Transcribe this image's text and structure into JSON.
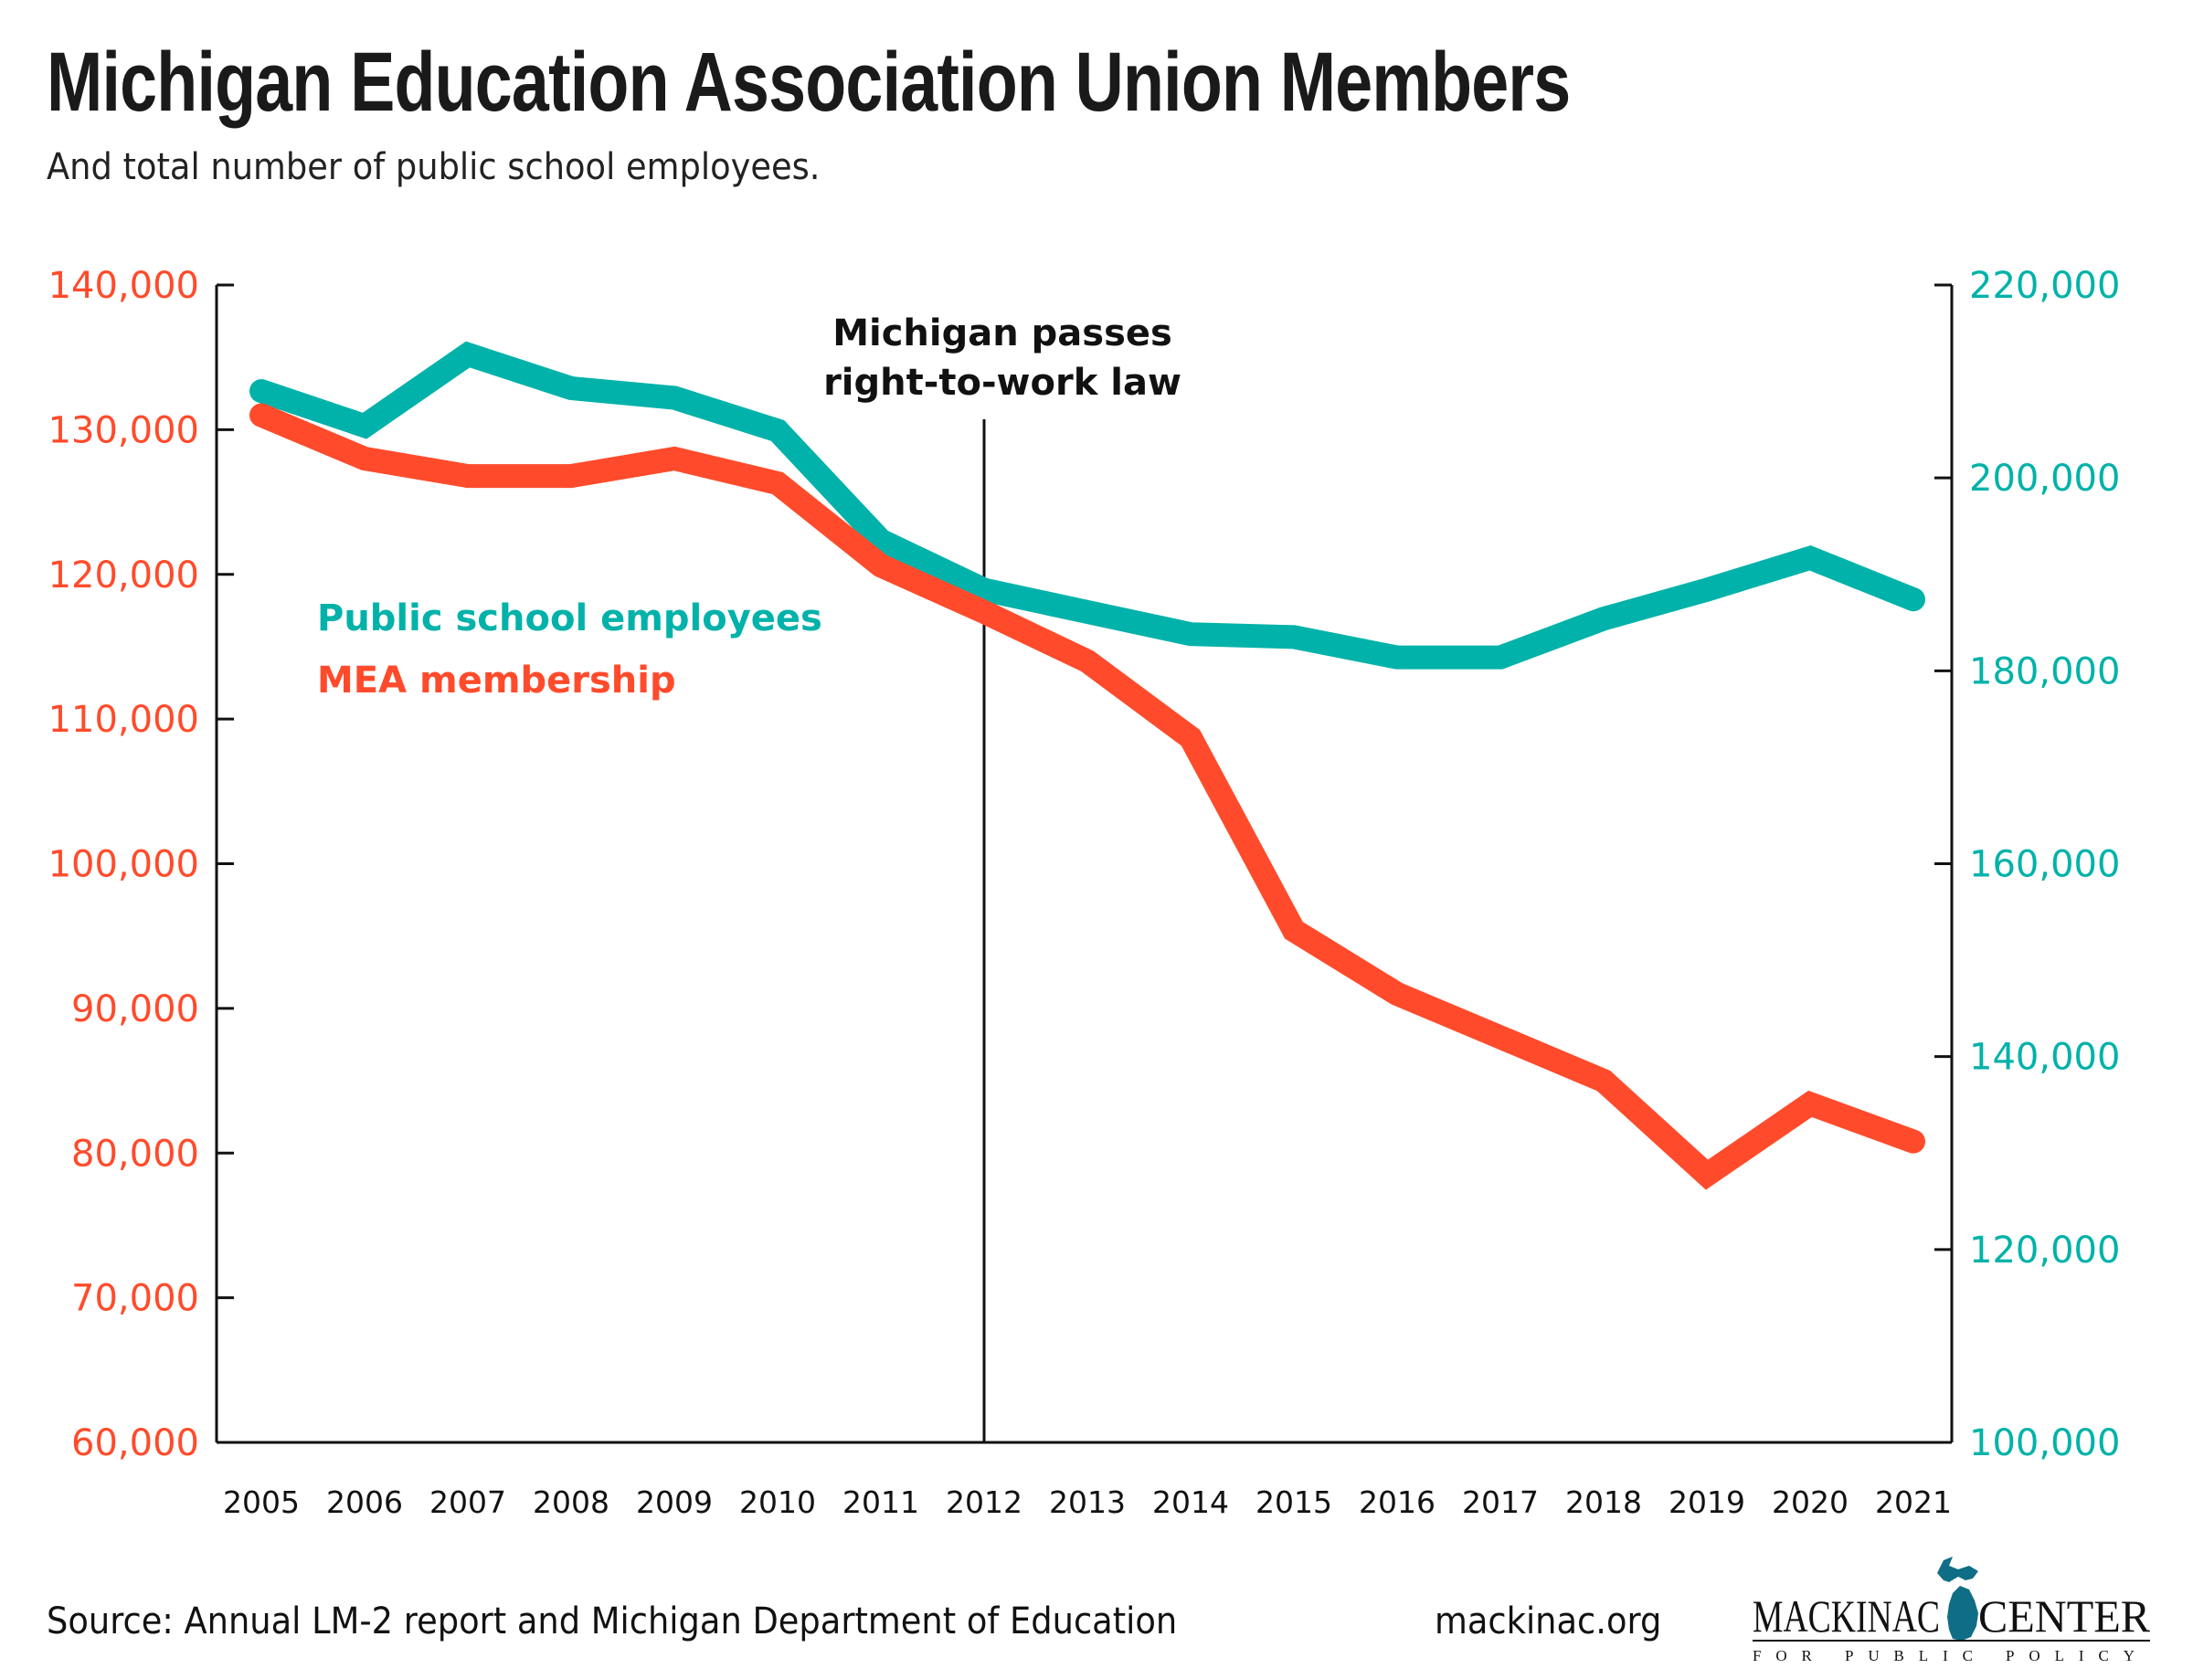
{
  "header": {
    "title": "Michigan Education Association Union Members",
    "subtitle": "And total number of public school employees."
  },
  "footer": {
    "source": "Source: Annual LM-2 report and Michigan Department of Education",
    "url": "mackinac.org",
    "logo": {
      "name_left": "MACKINAC",
      "name_right": "CENTER",
      "tagline": "FOR PUBLIC POLICY",
      "icon": "michigan-map-icon",
      "color": "#0f6e86"
    }
  },
  "colors": {
    "mea": "#ff4b2b",
    "employees": "#00b2a9",
    "axis": "#111111"
  },
  "chart_data": {
    "type": "line",
    "title": "Michigan Education Association Union Members",
    "subtitle": "And total number of public school employees.",
    "x": [
      2005,
      2006,
      2007,
      2008,
      2009,
      2010,
      2011,
      2012,
      2013,
      2014,
      2015,
      2016,
      2017,
      2018,
      2019,
      2020,
      2021
    ],
    "x_tick_labels": [
      "2005",
      "2006",
      "2007",
      "2008",
      "2009",
      "2010",
      "2011",
      "2012",
      "2013",
      "2014",
      "2015",
      "2016",
      "2017",
      "2018",
      "2019",
      "2020",
      "2021"
    ],
    "y_left": {
      "range": [
        60000,
        140000
      ],
      "ticks": [
        60000,
        70000,
        80000,
        90000,
        100000,
        110000,
        120000,
        130000,
        140000
      ],
      "tick_labels": [
        "60,000",
        "70,000",
        "80,000",
        "90,000",
        "100,000",
        "110,000",
        "120,000",
        "130,000",
        "140,000"
      ],
      "color": "#ff4b2b"
    },
    "y_right": {
      "range": [
        100000,
        220000
      ],
      "ticks": [
        100000,
        120000,
        140000,
        160000,
        180000,
        200000,
        220000
      ],
      "tick_labels": [
        "100,000",
        "120,000",
        "140,000",
        "160,000",
        "180,000",
        "200,000",
        "220,000"
      ],
      "color": "#00b2a9"
    },
    "series": [
      {
        "name": "Public school employees",
        "axis": "right",
        "color": "#00b2a9",
        "values": [
          209000,
          205400,
          212800,
          209300,
          208300,
          204900,
          193500,
          188400,
          186100,
          183800,
          183500,
          181400,
          181400,
          185400,
          188400,
          191700,
          187400
        ]
      },
      {
        "name": "MEA membership",
        "axis": "left",
        "color": "#ff4b2b",
        "values": [
          131000,
          128000,
          126800,
          126800,
          128000,
          126300,
          120600,
          117400,
          114000,
          108700,
          95400,
          91000,
          88000,
          85000,
          78500,
          83400,
          80800
        ]
      }
    ],
    "legend": [
      "Public school employees",
      "MEA membership"
    ],
    "legend_position": "upper-left",
    "annotations": [
      {
        "x": 2012,
        "lines": [
          "Michigan passes",
          "right-to-work law"
        ]
      }
    ],
    "grid": false
  }
}
